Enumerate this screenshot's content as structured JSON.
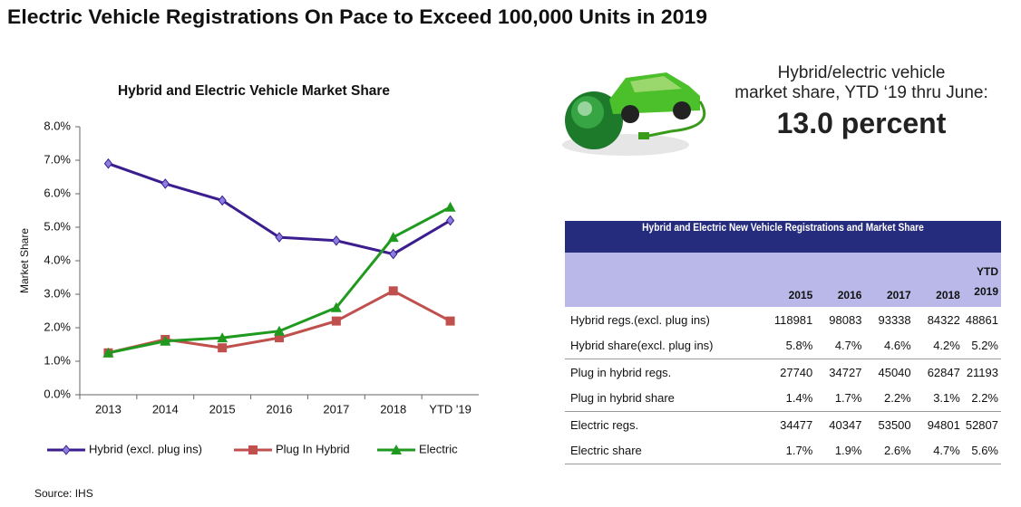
{
  "header": {
    "title": "Electric Vehicle Registrations On Pace to Exceed 100,000 Units in 2019"
  },
  "chart_data": {
    "type": "line",
    "title": "Hybrid and Electric Vehicle Market Share",
    "y_label": "Market Share",
    "categories": [
      "2013",
      "2014",
      "2015",
      "2016",
      "2017",
      "2018",
      "YTD '19"
    ],
    "series": [
      {
        "name": "Hybrid (excl. plug ins)",
        "color": "#3b1d8f",
        "marker": "diamond",
        "values": [
          6.9,
          6.3,
          5.8,
          4.7,
          4.6,
          4.2,
          5.2
        ]
      },
      {
        "name": "Plug In Hybrid",
        "color": "#c0504d",
        "marker": "square",
        "values": [
          1.25,
          1.65,
          1.4,
          1.7,
          2.2,
          3.1,
          2.2
        ]
      },
      {
        "name": "Electric",
        "color": "#1f9a1f",
        "marker": "triangle",
        "values": [
          1.25,
          1.6,
          1.7,
          1.9,
          2.6,
          4.7,
          5.6
        ]
      }
    ],
    "ylim": [
      0,
      8
    ],
    "yticks": [
      {
        "value": 0,
        "label": "0.0%"
      },
      {
        "value": 1,
        "label": "1.0%"
      },
      {
        "value": 2,
        "label": "2.0%"
      },
      {
        "value": 3,
        "label": "3.0%"
      },
      {
        "value": 4,
        "label": "4.0%"
      },
      {
        "value": 5,
        "label": "5.0%"
      },
      {
        "value": 6,
        "label": "6.0%"
      },
      {
        "value": 7,
        "label": "7.0%"
      },
      {
        "value": 8,
        "label": "8.0%"
      }
    ],
    "legend": "bottom"
  },
  "callout": {
    "lines": [
      "Hybrid/electric vehicle",
      "market share, YTD ‘19 thru June:"
    ],
    "highlight": "13.0 percent"
  },
  "table": {
    "title": "Hybrid and Electric New Vehicle Registrations and Market Share",
    "columns": [
      "2015",
      "2016",
      "2017",
      "2018",
      "YTD 2019"
    ],
    "rows": [
      [
        "Hybrid regs.(excl. plug ins)",
        "118981",
        "98083",
        "93338",
        "84322",
        "48861"
      ],
      [
        "Hybrid share(excl. plug ins)",
        "5.8%",
        "4.7%",
        "4.6%",
        "4.2%",
        "5.2%"
      ],
      [
        "Plug in hybrid regs.",
        "27740",
        "34727",
        "45040",
        "62847",
        "21193"
      ],
      [
        "Plug in hybrid share",
        "1.4%",
        "1.7%",
        "2.2%",
        "3.1%",
        "2.2%"
      ],
      [
        "Electric regs.",
        "34477",
        "40347",
        "53500",
        "94801",
        "52807"
      ],
      [
        "Electric share",
        "1.7%",
        "1.9%",
        "2.6%",
        "4.7%",
        "5.6%"
      ]
    ]
  },
  "source": "Source: IHS"
}
